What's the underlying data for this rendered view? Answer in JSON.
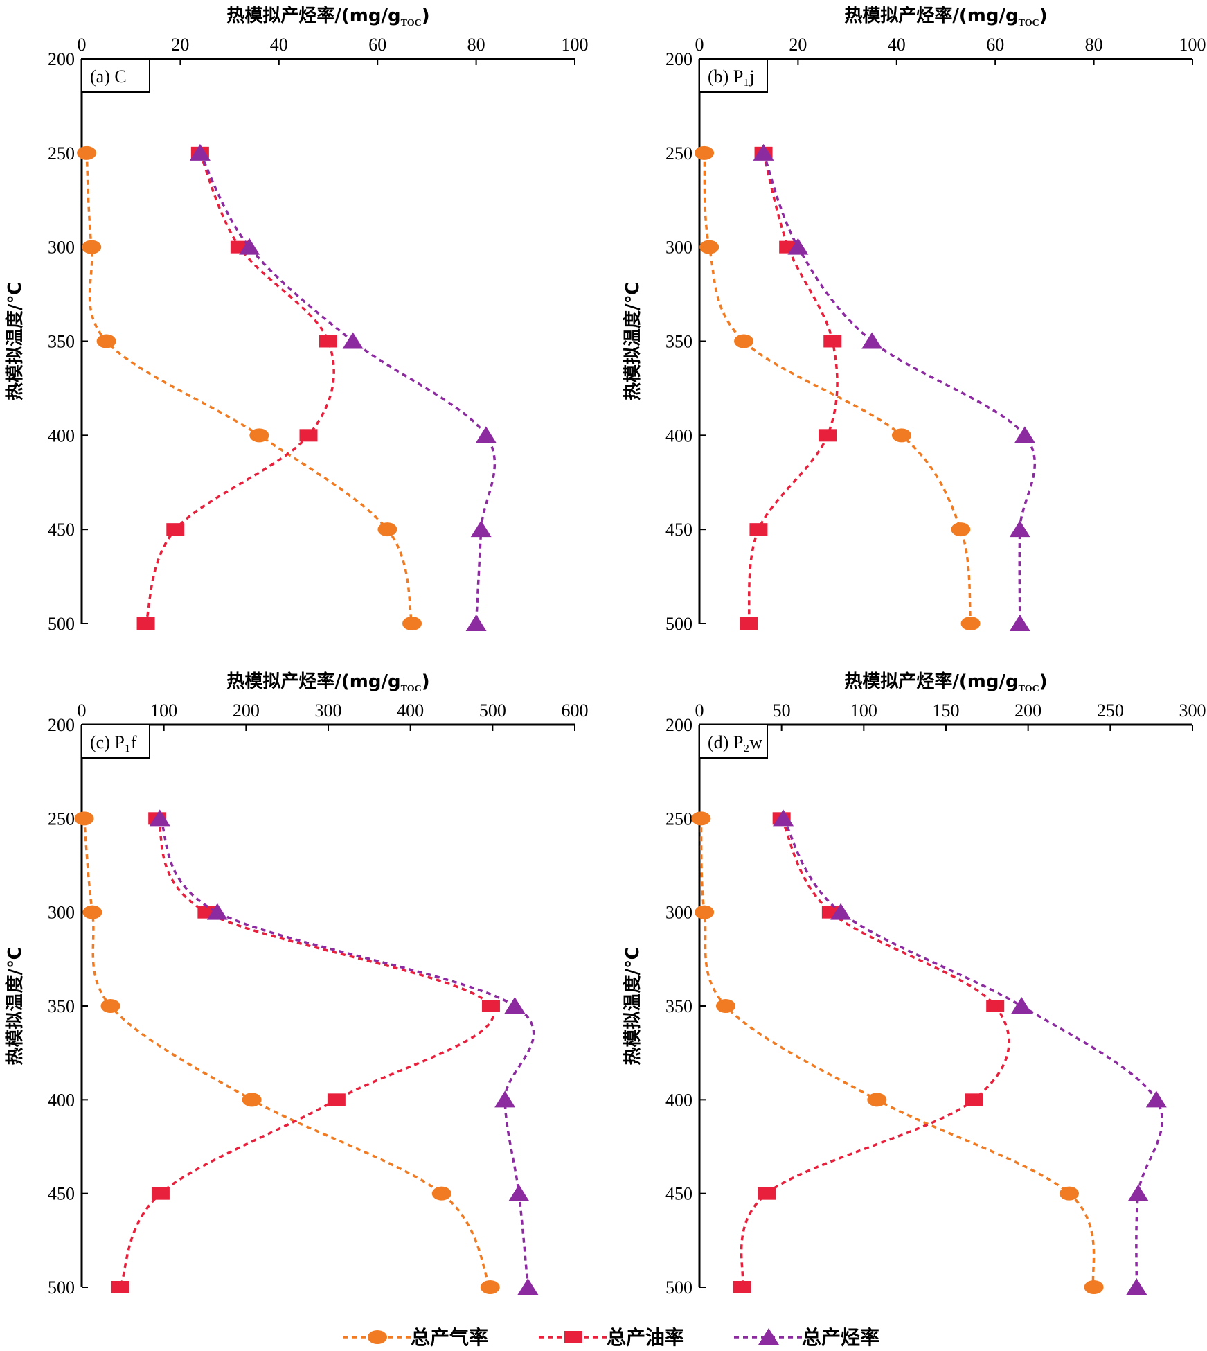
{
  "temperatures": [
    250,
    300,
    350,
    400,
    450,
    500
  ],
  "y_ticks": [
    200,
    250,
    300,
    350,
    400,
    450,
    500
  ],
  "ylim": [
    200,
    500
  ],
  "colors": {
    "gas": "#f07b22",
    "oil": "#e8203c",
    "hydrocarbon": "#8c2aa0"
  },
  "legend": [
    {
      "key": "gas",
      "label": "总产气率",
      "marker": "ellipse"
    },
    {
      "key": "oil",
      "label": "总产油率",
      "marker": "square"
    },
    {
      "key": "hydrocarbon",
      "label": "总产烃率",
      "marker": "triangle"
    }
  ],
  "chart_data": [
    {
      "type": "line",
      "panel_label": "(a) C",
      "xlabel": "热模拟产烃率/(mg/g",
      "xlabel_sub": "TOC",
      "xlabel_tail": ")",
      "ylabel": "热模拟温度/℃",
      "xlim": [
        0,
        100
      ],
      "x_ticks": [
        0,
        20,
        40,
        60,
        80,
        100
      ],
      "series": [
        {
          "key": "gas",
          "name": "总产气率",
          "x": [
            1,
            2,
            5,
            36,
            62,
            67
          ]
        },
        {
          "key": "oil",
          "name": "总产油率",
          "x": [
            24,
            32,
            50,
            46,
            19,
            13
          ]
        },
        {
          "key": "hydrocarbon",
          "name": "总产烃率",
          "x": [
            24,
            34,
            55,
            82,
            81,
            80
          ]
        }
      ]
    },
    {
      "type": "line",
      "panel_label": "(b) P₁j",
      "xlabel": "热模拟产烃率/(mg/g",
      "xlabel_sub": "TOC",
      "xlabel_tail": ")",
      "ylabel": "热模拟温度/℃",
      "xlim": [
        0,
        100
      ],
      "x_ticks": [
        0,
        20,
        40,
        60,
        80,
        100
      ],
      "series": [
        {
          "key": "gas",
          "name": "总产气率",
          "x": [
            1,
            2,
            9,
            41,
            53,
            55
          ]
        },
        {
          "key": "oil",
          "name": "总产油率",
          "x": [
            13,
            18,
            27,
            26,
            12,
            10
          ]
        },
        {
          "key": "hydrocarbon",
          "name": "总产烃率",
          "x": [
            13,
            20,
            35,
            66,
            65,
            65
          ]
        }
      ]
    },
    {
      "type": "line",
      "panel_label": "(c) P₁f",
      "xlabel": "热模拟产烃率/(mg/g",
      "xlabel_sub": "TOC",
      "xlabel_tail": ")",
      "ylabel": "热模拟温度/℃",
      "xlim": [
        0,
        600
      ],
      "x_ticks": [
        0,
        100,
        200,
        300,
        400,
        500,
        600
      ],
      "series": [
        {
          "key": "gas",
          "name": "总产气率",
          "x": [
            3,
            13,
            35,
            207,
            438,
            497
          ]
        },
        {
          "key": "oil",
          "name": "总产油率",
          "x": [
            92,
            152,
            498,
            310,
            96,
            47
          ]
        },
        {
          "key": "hydrocarbon",
          "name": "总产烃率",
          "x": [
            95,
            165,
            527,
            515,
            532,
            543
          ]
        }
      ]
    },
    {
      "type": "line",
      "panel_label": "(d) P₂w",
      "xlabel": "热模拟产烃率/(mg/g",
      "xlabel_sub": "TOC",
      "xlabel_tail": ")",
      "ylabel": "热模拟温度/℃",
      "xlim": [
        0,
        300
      ],
      "x_ticks": [
        0,
        50,
        100,
        150,
        200,
        250,
        300
      ],
      "series": [
        {
          "key": "gas",
          "name": "总产气率",
          "x": [
            1,
            3,
            16,
            108,
            225,
            240
          ]
        },
        {
          "key": "oil",
          "name": "总产油率",
          "x": [
            50,
            80,
            180,
            167,
            41,
            26
          ]
        },
        {
          "key": "hydrocarbon",
          "name": "总产烃率",
          "x": [
            51,
            86,
            196,
            278,
            267,
            266
          ]
        }
      ]
    }
  ]
}
